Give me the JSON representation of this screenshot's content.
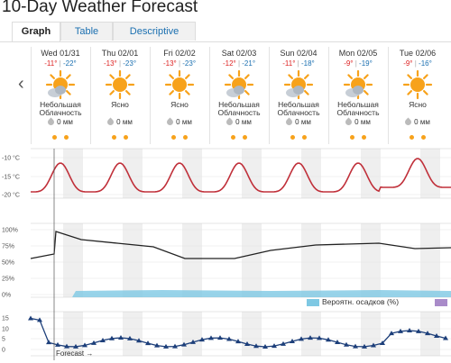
{
  "header": {
    "title": "10-Day Weather Forecast"
  },
  "tabs": [
    {
      "label": "Graph"
    },
    {
      "label": "Table"
    },
    {
      "label": "Descriptive"
    }
  ],
  "days": [
    {
      "date": "Wed 01/31",
      "high": "-11°",
      "low": "-22°",
      "condition": "Небольшая Облачность",
      "precip": "0 мм",
      "icon": "sun-cloud"
    },
    {
      "date": "Thu 02/01",
      "high": "-13°",
      "low": "-23°",
      "condition": "Ясно",
      "precip": "0 мм",
      "icon": "sun"
    },
    {
      "date": "Fri 02/02",
      "high": "-13°",
      "low": "-23°",
      "condition": "Ясно",
      "precip": "0 мм",
      "icon": "sun"
    },
    {
      "date": "Sat 02/03",
      "high": "-12°",
      "low": "-21°",
      "condition": "Небольшая Облачность",
      "precip": "0 мм",
      "icon": "sun-cloud"
    },
    {
      "date": "Sun 02/04",
      "high": "-11°",
      "low": "-18°",
      "condition": "Небольшая Облачность",
      "precip": "0 мм",
      "icon": "sun-cloud"
    },
    {
      "date": "Mon 02/05",
      "high": "-9°",
      "low": "-19°",
      "condition": "Небольшая Облачность",
      "precip": "0 мм",
      "icon": "sun-cloud"
    },
    {
      "date": "Tue 02/06",
      "high": "-9°",
      "low": "-16°",
      "condition": "Ясно",
      "precip": "0 мм",
      "icon": "sun"
    }
  ],
  "temp_chart": {
    "y_ticks": [
      "-10 °C",
      "-15 °C",
      "-20 °C"
    ],
    "color": "#c0303a"
  },
  "humidity_chart": {
    "y_ticks": [
      "100%",
      "75%",
      "50%",
      "25%",
      "0%"
    ],
    "color": "#222222"
  },
  "wind_chart": {
    "y_ticks": [
      "15",
      "10",
      "5",
      "0"
    ],
    "color": "#1d3f7a"
  },
  "legend": {
    "precip_label": "Вероятн. осадков (%)",
    "precip_color": "#7ec8e3",
    "second_color": "#a98bc9"
  },
  "forecast_label": "Forecast →",
  "colors": {
    "sun": "#f7a21b",
    "cloud": "#9aa3ad",
    "link": "#1a6fb0"
  }
}
